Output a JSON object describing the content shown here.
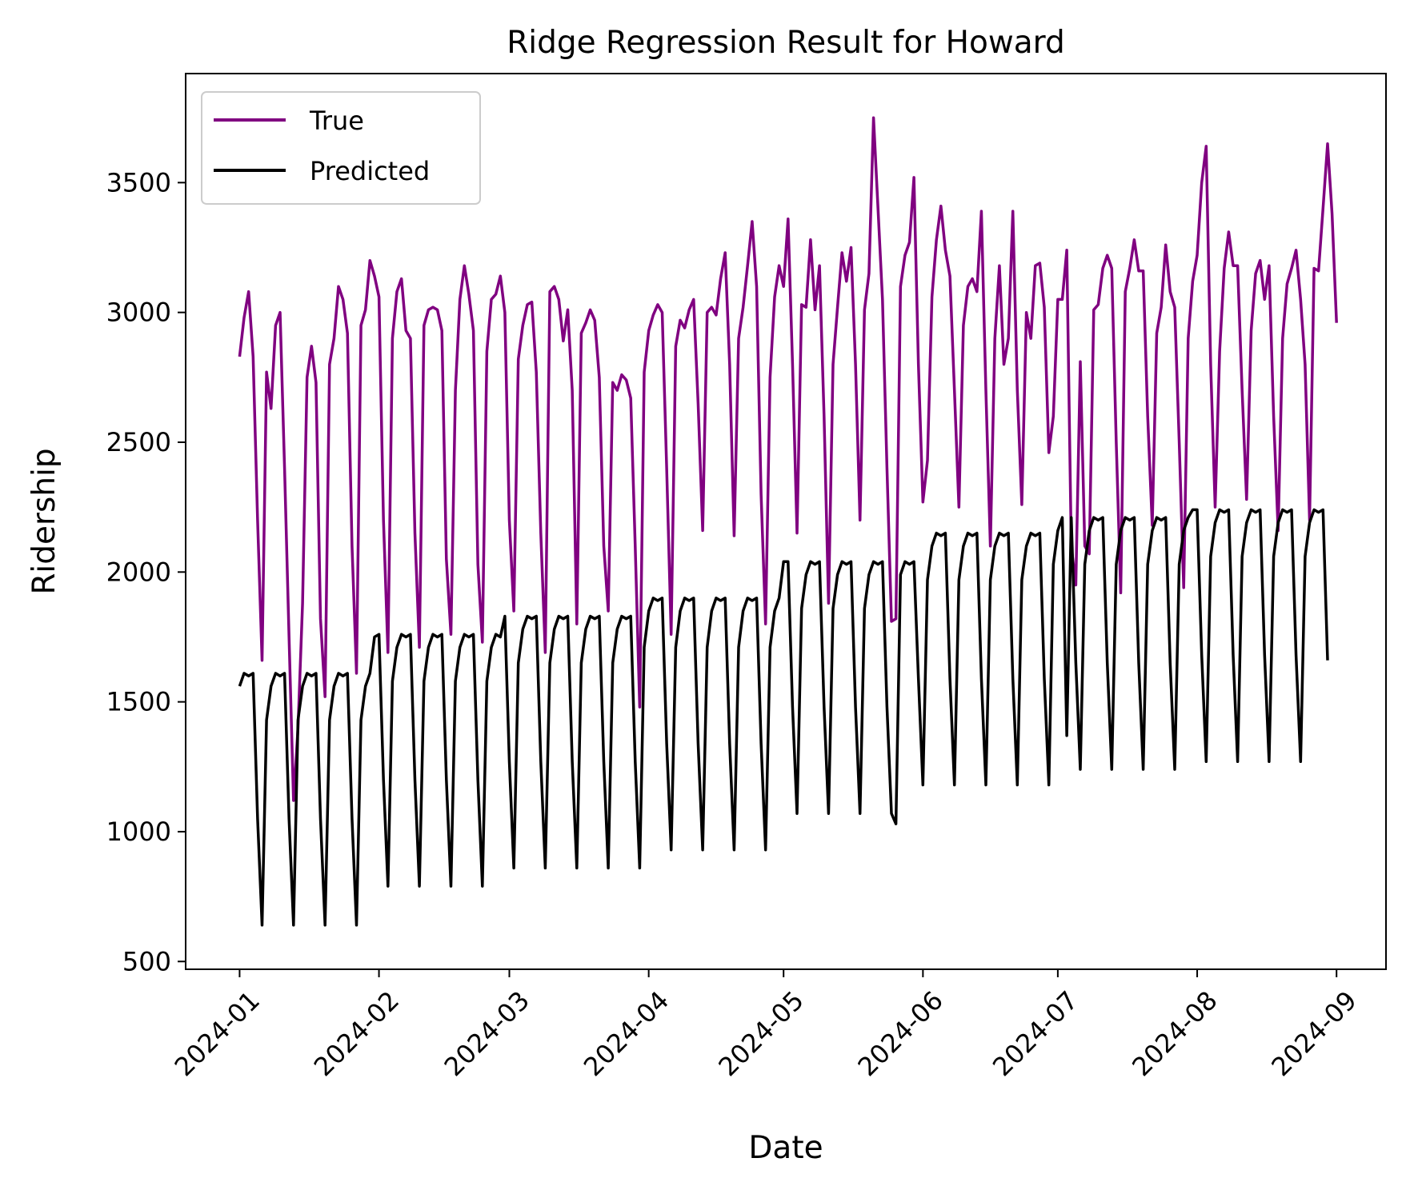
{
  "chart_data": {
    "type": "line",
    "title": "Ridge Regression Result for Howard",
    "xlabel": "Date",
    "ylabel": "Ridership",
    "ylim": [
      470,
      3920
    ],
    "xlim": [
      "2023-12-20",
      "2024-09-12"
    ],
    "yticks": [
      500,
      1000,
      1500,
      2000,
      2500,
      3000,
      3500
    ],
    "xticks": [
      "2024-01",
      "2024-02",
      "2024-03",
      "2024-04",
      "2024-05",
      "2024-06",
      "2024-07",
      "2024-08",
      "2024-09"
    ],
    "grid": false,
    "legend": "top-left",
    "x_start": "2024-01-01",
    "x_end": "2024-08-31",
    "series": [
      {
        "name": "True",
        "color": "#800080",
        "values": [
          2830,
          2980,
          3080,
          2830,
          2200,
          1660,
          2770,
          2630,
          2950,
          3000,
          2400,
          1750,
          1120,
          1400,
          1880,
          2750,
          2870,
          2730,
          1820,
          1520,
          2800,
          2900,
          3100,
          3050,
          2920,
          2100,
          1610,
          2950,
          3010,
          3200,
          3140,
          3060,
          2200,
          1690,
          2900,
          3080,
          3130,
          2930,
          2900,
          2150,
          1710,
          2950,
          3010,
          3020,
          3010,
          2930,
          2050,
          1760,
          2700,
          3050,
          3180,
          3070,
          2930,
          2030,
          1730,
          2850,
          3050,
          3070,
          3140,
          3000,
          2200,
          1850,
          2820,
          2950,
          3030,
          3040,
          2770,
          2150,
          1690,
          3080,
          3100,
          3050,
          2890,
          3010,
          2700,
          1800,
          2920,
          2960,
          3010,
          2970,
          2750,
          2100,
          1850,
          2730,
          2700,
          2760,
          2740,
          2670,
          2100,
          1480,
          2770,
          2930,
          2990,
          3030,
          3000,
          2400,
          1760,
          2870,
          2970,
          2940,
          3010,
          3050,
          2650,
          2160,
          3000,
          3020,
          2990,
          3130,
          3230,
          2800,
          2140,
          2900,
          3020,
          3180,
          3350,
          3100,
          2300,
          1800,
          2750,
          3060,
          3180,
          3100,
          3360,
          2800,
          2150,
          3030,
          3020,
          3280,
          3010,
          3180,
          2600,
          1880,
          2800,
          3020,
          3230,
          3120,
          3250,
          2800,
          2200,
          3010,
          3150,
          3750,
          3400,
          3050,
          2400,
          1810,
          1820,
          3100,
          3220,
          3270,
          3520,
          2800,
          2270,
          2430,
          3060,
          3280,
          3410,
          3240,
          3140,
          2700,
          2250,
          2950,
          3100,
          3130,
          3080,
          3390,
          2700,
          2100,
          2900,
          3180,
          2800,
          2900,
          3390,
          2700,
          2260,
          3000,
          2900,
          3180,
          3190,
          3020,
          2460,
          2600,
          3050,
          3050,
          3240,
          2100,
          1950,
          2810,
          2100,
          2070,
          3010,
          3030,
          3170,
          3220,
          3170,
          2500,
          1920,
          3080,
          3170,
          3280,
          3160,
          3160,
          2600,
          2180,
          2920,
          3020,
          3260,
          3080,
          3020,
          2500,
          1940,
          2900,
          3120,
          3220,
          3500,
          3640,
          2800,
          2250,
          2850,
          3170,
          3310,
          3180,
          3180,
          2700,
          2280,
          2930,
          3150,
          3200,
          3050,
          3180,
          2600,
          2160,
          2900,
          3110,
          3170,
          3240,
          3050,
          2800,
          2200,
          3170,
          3160,
          3400,
          3650,
          3380,
          2960
        ]
      },
      {
        "name": "Predicted",
        "color": "#000000",
        "values": [
          1560,
          1610,
          1600,
          1610,
          1050,
          640,
          1430,
          1560,
          1610,
          1600,
          1610,
          1050,
          640,
          1430,
          1560,
          1610,
          1600,
          1610,
          1050,
          640,
          1430,
          1560,
          1610,
          1600,
          1610,
          1050,
          640,
          1430,
          1560,
          1610,
          1750,
          1760,
          1200,
          790,
          1580,
          1710,
          1760,
          1750,
          1760,
          1200,
          790,
          1580,
          1710,
          1760,
          1750,
          1760,
          1200,
          790,
          1580,
          1710,
          1760,
          1750,
          1760,
          1200,
          790,
          1580,
          1710,
          1760,
          1750,
          1830,
          1270,
          860,
          1650,
          1780,
          1830,
          1820,
          1830,
          1270,
          860,
          1650,
          1780,
          1830,
          1820,
          1830,
          1270,
          860,
          1650,
          1780,
          1830,
          1820,
          1830,
          1270,
          860,
          1650,
          1780,
          1830,
          1820,
          1830,
          1270,
          860,
          1710,
          1850,
          1900,
          1890,
          1900,
          1340,
          930,
          1710,
          1850,
          1900,
          1890,
          1900,
          1340,
          930,
          1710,
          1850,
          1900,
          1890,
          1900,
          1340,
          930,
          1710,
          1850,
          1900,
          1890,
          1900,
          1340,
          930,
          1710,
          1850,
          1900,
          2040,
          2040,
          1480,
          1070,
          1860,
          1990,
          2040,
          2030,
          2040,
          1480,
          1070,
          1860,
          1990,
          2040,
          2030,
          2040,
          1480,
          1070,
          1860,
          1990,
          2040,
          2030,
          2040,
          1480,
          1070,
          1030,
          1990,
          2040,
          2030,
          2040,
          1590,
          1180,
          1970,
          2100,
          2150,
          2140,
          2150,
          1590,
          1180,
          1970,
          2100,
          2150,
          2140,
          2150,
          1590,
          1180,
          1970,
          2100,
          2150,
          2140,
          2150,
          1590,
          1180,
          1970,
          2100,
          2150,
          2140,
          2150,
          1590,
          1180,
          2030,
          2160,
          2210,
          1370,
          2210,
          1650,
          1240,
          2030,
          2160,
          2210,
          2200,
          2210,
          1650,
          1240,
          2030,
          2160,
          2210,
          2200,
          2210,
          1650,
          1240,
          2030,
          2160,
          2210,
          2200,
          2210,
          1650,
          1240,
          2030,
          2160,
          2210,
          2240,
          2240,
          1680,
          1270,
          2060,
          2190,
          2240,
          2230,
          2240,
          1680,
          1270,
          2060,
          2190,
          2240,
          2230,
          2240,
          1680,
          1270,
          2060,
          2190,
          2240,
          2230,
          2240,
          1680,
          1270,
          2060,
          2190,
          2240,
          2230,
          2240,
          1660
        ]
      }
    ]
  }
}
